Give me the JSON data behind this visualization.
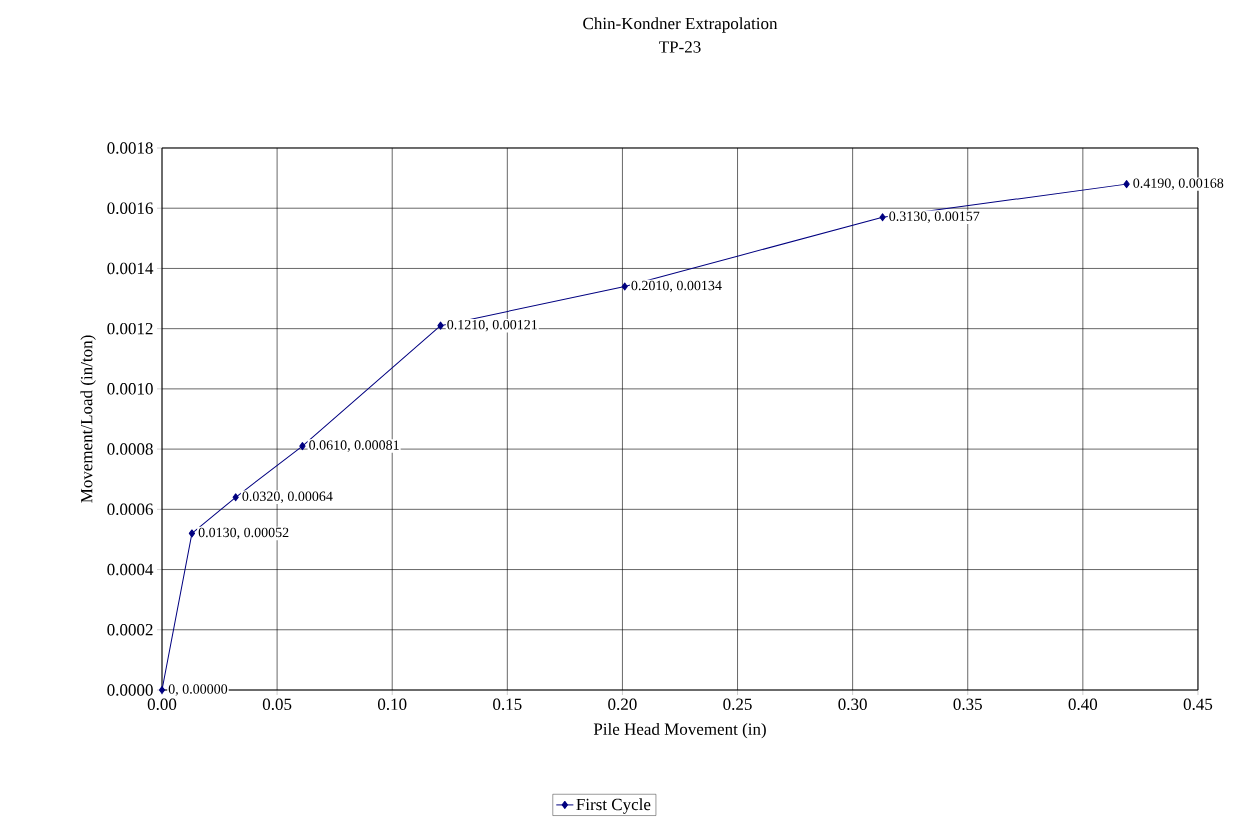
{
  "chart_data": {
    "type": "line",
    "title": "Chin-Kondner Extrapolation",
    "subtitle": "TP-23",
    "xlabel": "Pile Head Movement (in)",
    "ylabel": "Movement/Load (in/ton)",
    "x": [
      0,
      0.013,
      0.032,
      0.061,
      0.121,
      0.201,
      0.313,
      0.419
    ],
    "series": [
      {
        "name": "First Cycle",
        "color": "#000080",
        "values": [
          0,
          0.00052,
          0.00064,
          0.00081,
          0.00121,
          0.00134,
          0.00157,
          0.00168
        ],
        "value_labels": [
          "0, 0.00000",
          "0.0130, 0.00052",
          "0.0320, 0.00064",
          "0.0610, 0.00081",
          "0.1210, 0.00121",
          "0.2010, 0.00134",
          "0.3130, 0.00157",
          "0.4190, 0.00168"
        ]
      }
    ],
    "xlim": [
      0,
      0.45
    ],
    "xticks": [
      {
        "value": 0,
        "label": "0.00"
      },
      {
        "value": 0.05,
        "label": "0.05"
      },
      {
        "value": 0.1,
        "label": "0.10"
      },
      {
        "value": 0.15,
        "label": "0.15"
      },
      {
        "value": 0.2,
        "label": "0.20"
      },
      {
        "value": 0.25,
        "label": "0.25"
      },
      {
        "value": 0.3,
        "label": "0.30"
      },
      {
        "value": 0.35,
        "label": "0.35"
      },
      {
        "value": 0.4,
        "label": "0.40"
      },
      {
        "value": 0.45,
        "label": "0.45"
      }
    ],
    "ylim": [
      0,
      0.0018
    ],
    "yticks": [
      {
        "value": 0,
        "label": "0.0000"
      },
      {
        "value": 0.0002,
        "label": "0.0002"
      },
      {
        "value": 0.0004,
        "label": "0.0004"
      },
      {
        "value": 0.0006,
        "label": "0.0006"
      },
      {
        "value": 0.0008,
        "label": "0.0008"
      },
      {
        "value": 0.001,
        "label": "0.0010"
      },
      {
        "value": 0.0012,
        "label": "0.0012"
      },
      {
        "value": 0.0014,
        "label": "0.0014"
      },
      {
        "value": 0.0016,
        "label": "0.0016"
      },
      {
        "value": 0.0018,
        "label": "0.0018"
      }
    ],
    "grid": true,
    "legend": "bottom",
    "marker": "diamond",
    "line_style": "solid"
  }
}
